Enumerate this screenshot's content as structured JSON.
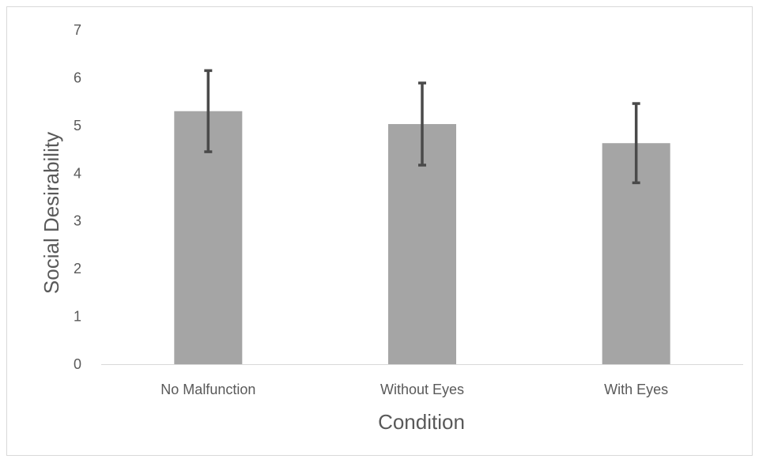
{
  "chart_data": {
    "type": "bar",
    "categories": [
      "No Malfunction",
      "Without Eyes",
      "With Eyes"
    ],
    "values": [
      5.3,
      5.03,
      4.63
    ],
    "error": [
      0.85,
      0.86,
      0.83
    ],
    "xlabel": "Condition",
    "ylabel": "Social Desirability",
    "ylim": [
      0,
      7
    ],
    "yticks": [
      "0",
      "1",
      "2",
      "3",
      "4",
      "5",
      "6",
      "7"
    ],
    "grid": false,
    "legend": "none",
    "bar_color": "#a5a5a5",
    "error_bar_color": "#4a4a4a",
    "axis_color": "#d9d9d9",
    "text_color": "#595959"
  }
}
